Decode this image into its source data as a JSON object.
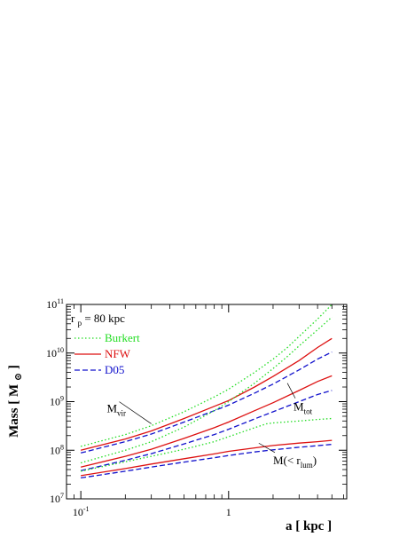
{
  "chart_data": {
    "type": "line",
    "title": "",
    "xlabel": "a [ kpc ]",
    "ylabel_main": "Mass [  M",
    "ylabel_sun": "⊙",
    "ylabel_close": "]",
    "xscale": "log",
    "yscale": "log",
    "xlim": [
      0.08,
      6.3
    ],
    "ylim": [
      10000000,
      100000000000
    ],
    "grid": false,
    "legend_position": "top-left",
    "x_ticks": [
      {
        "value": 0.1,
        "base": "10",
        "exp": "-1"
      },
      {
        "value": 1,
        "base": "1",
        "exp": ""
      }
    ],
    "y_ticks": [
      {
        "value": 10000000,
        "base": "10",
        "exp": "7"
      },
      {
        "value": 100000000,
        "base": "10",
        "exp": "8"
      },
      {
        "value": 1000000000,
        "base": "10",
        "exp": "9"
      },
      {
        "value": 10000000000,
        "base": "10",
        "exp": "10"
      },
      {
        "value": 100000000000,
        "base": "10",
        "exp": "11"
      }
    ],
    "text_annotations": {
      "rp_prefix": "r",
      "rp_sub": "p",
      "rp_value": " = 80 kpc"
    },
    "annotations": [
      {
        "id": "mvir",
        "base": "M",
        "sub": "vir",
        "tail": "",
        "x": 0.15,
        "y": 600000000,
        "target": [
          0.3,
          350000000
        ]
      },
      {
        "id": "mtot",
        "base": "M",
        "sub": "tot",
        "tail": "",
        "x": 2.75,
        "y": 650000000,
        "target": [
          2.5,
          2400000000
        ]
      },
      {
        "id": "mlum",
        "base": "M(< r",
        "sub": "lum",
        "tail": ")",
        "x": 2.0,
        "y": 52000000,
        "target": [
          1.6,
          140000000
        ]
      }
    ],
    "legend": [
      {
        "label": "Burkert",
        "color": "#22dd22",
        "dash": "dotted"
      },
      {
        "label": "NFW",
        "color": "#dd1111",
        "dash": "solid"
      },
      {
        "label": "D05",
        "color": "#1111cc",
        "dash": "dashed"
      }
    ],
    "series": [
      {
        "group": "M_vir",
        "model": "Burkert",
        "color": "#22dd22",
        "dash": "dotted",
        "x": [
          0.1,
          0.2,
          0.3,
          0.5,
          0.8,
          1.0,
          1.5,
          2.0,
          2.5,
          3.0,
          4.0,
          5.0
        ],
        "y": [
          120000000,
          210000000,
          320000000,
          620000000,
          1250000000,
          1800000000,
          4000000000,
          7500000000,
          13000000000,
          22000000000,
          50000000000,
          100000000000
        ]
      },
      {
        "group": "M_vir",
        "model": "NFW",
        "color": "#dd1111",
        "dash": "solid",
        "x": [
          0.1,
          0.2,
          0.3,
          0.5,
          0.8,
          1.0,
          1.5,
          2.0,
          3.0,
          4.0,
          5.0
        ],
        "y": [
          100000000,
          170000000,
          250000000,
          450000000,
          800000000,
          1050000000,
          2000000000,
          3300000000,
          7000000000,
          13000000000,
          20000000000
        ]
      },
      {
        "group": "M_vir",
        "model": "D05",
        "color": "#1111cc",
        "dash": "dashed",
        "x": [
          0.1,
          0.2,
          0.3,
          0.5,
          0.8,
          1.0,
          1.5,
          2.0,
          3.0,
          4.0,
          5.0
        ],
        "y": [
          88000000,
          150000000,
          215000000,
          380000000,
          650000000,
          850000000,
          1500000000,
          2300000000,
          4500000000,
          7500000000,
          10500000000
        ]
      },
      {
        "group": "M_tot",
        "model": "Burkert",
        "color": "#22dd22",
        "dash": "dotted",
        "x": [
          0.1,
          0.2,
          0.3,
          0.5,
          0.8,
          1.0,
          1.5,
          2.0,
          2.5,
          3.0,
          4.0,
          5.0
        ],
        "y": [
          55000000,
          100000000,
          150000000,
          300000000,
          650000000,
          1000000000,
          2400000000,
          4800000000,
          8500000000,
          14000000000,
          30000000000,
          55000000000
        ]
      },
      {
        "group": "M_tot",
        "model": "NFW",
        "color": "#dd1111",
        "dash": "solid",
        "x": [
          0.1,
          0.2,
          0.3,
          0.5,
          0.8,
          1.0,
          1.5,
          2.0,
          3.0,
          4.0,
          5.0
        ],
        "y": [
          45000000,
          75000000,
          105000000,
          175000000,
          290000000,
          380000000,
          650000000,
          950000000,
          1700000000,
          2600000000,
          3400000000
        ]
      },
      {
        "group": "M_tot",
        "model": "D05",
        "color": "#1111cc",
        "dash": "dashed",
        "x": [
          0.1,
          0.2,
          0.3,
          0.5,
          0.8,
          1.0,
          1.5,
          2.0,
          3.0,
          4.0,
          5.0
        ],
        "y": [
          38000000,
          62000000,
          85000000,
          135000000,
          210000000,
          270000000,
          440000000,
          620000000,
          1000000000,
          1400000000,
          1700000000
        ]
      },
      {
        "group": "M_lum",
        "model": "Burkert",
        "color": "#22dd22",
        "dash": "dotted",
        "x": [
          0.1,
          0.2,
          0.3,
          0.5,
          0.8,
          1.0,
          1.5,
          1.8,
          2.0,
          3.0,
          4.0,
          5.0
        ],
        "y": [
          37000000,
          58000000,
          75000000,
          105000000,
          150000000,
          190000000,
          290000000,
          350000000,
          365000000,
          400000000,
          430000000,
          450000000
        ]
      },
      {
        "group": "M_lum",
        "model": "NFW",
        "color": "#dd1111",
        "dash": "solid",
        "x": [
          0.1,
          0.2,
          0.3,
          0.5,
          0.8,
          1.0,
          1.5,
          2.0,
          3.0,
          4.0,
          5.0
        ],
        "y": [
          30000000,
          42000000,
          52000000,
          67000000,
          84000000,
          95000000,
          112000000,
          125000000,
          140000000,
          150000000,
          160000000
        ]
      },
      {
        "group": "M_lum",
        "model": "D05",
        "color": "#1111cc",
        "dash": "dashed",
        "x": [
          0.1,
          0.2,
          0.3,
          0.5,
          0.8,
          1.0,
          1.5,
          2.0,
          3.0,
          4.0,
          5.0
        ],
        "y": [
          27000000,
          37000000,
          45000000,
          57000000,
          70000000,
          78000000,
          92000000,
          102000000,
          115000000,
          124000000,
          132000000
        ]
      }
    ]
  }
}
